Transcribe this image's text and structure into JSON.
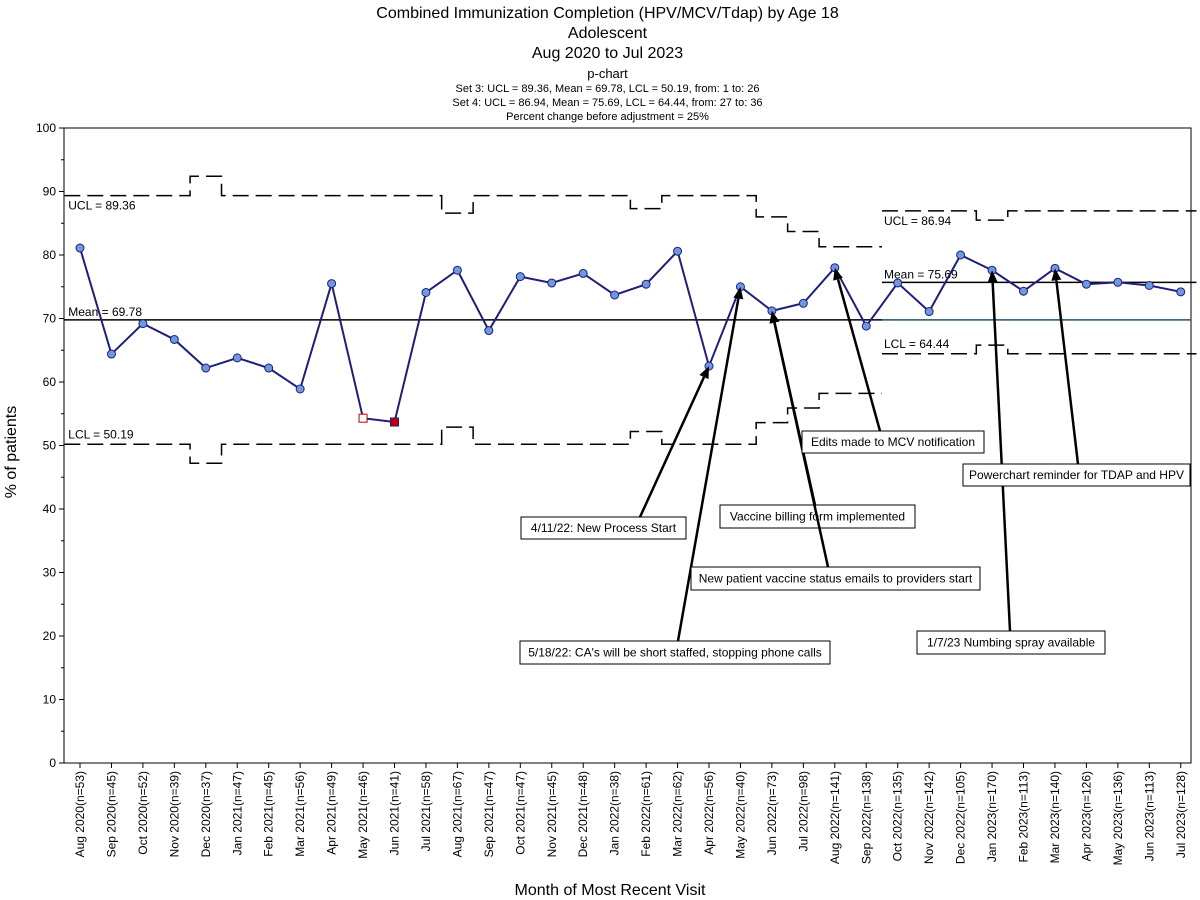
{
  "chart_data": {
    "type": "line",
    "chart_kind": "p-chart",
    "title": "Combined Immunization Completion (HPV/MCV/Tdap) by Age 18",
    "subtitle": "Adolescent",
    "date_range": "Aug 2020 to Jul 2023",
    "chart_type_label": "p-chart",
    "set_info": [
      "Set 3: UCL = 89.36, Mean = 69.78, LCL = 50.19, from: 1 to: 26",
      "Set 4: UCL = 86.94, Mean = 75.69, LCL = 64.44, from: 27 to: 36",
      "Percent change before adjustment = 25%"
    ],
    "xlabel": "Month of Most Recent Visit",
    "ylabel": "% of patients",
    "ylim": [
      0,
      100
    ],
    "yticks": [
      0,
      10,
      20,
      30,
      40,
      50,
      60,
      70,
      80,
      90,
      100
    ],
    "categories": [
      "Aug 2020(n=53)",
      "Sep 2020(n=45)",
      "Oct 2020(n=52)",
      "Nov 2020(n=39)",
      "Dec 2020(n=37)",
      "Jan 2021(n=47)",
      "Feb 2021(n=45)",
      "Mar 2021(n=56)",
      "Apr 2021(n=49)",
      "May 2021(n=46)",
      "Jun 2021(n=41)",
      "Jul 2021(n=58)",
      "Aug 2021(n=67)",
      "Sep 2021(n=47)",
      "Oct 2021(n=47)",
      "Nov 2021(n=45)",
      "Dec 2021(n=48)",
      "Jan 2022(n=38)",
      "Feb 2022(n=61)",
      "Mar 2022(n=62)",
      "Apr 2022(n=56)",
      "May 2022(n=40)",
      "Jun 2022(n=73)",
      "Jul 2022(n=98)",
      "Aug 2022(n=141)",
      "Sep 2022(n=138)",
      "Oct 2022(n=135)",
      "Nov 2022(n=142)",
      "Dec 2022(n=105)",
      "Jan 2023(n=170)",
      "Feb 2023(n=113)",
      "Mar 2023(n=140)",
      "Apr 2023(n=126)",
      "May 2023(n=136)",
      "Jun 2023(n=113)",
      "Jul 2023(n=128)"
    ],
    "values": [
      81.1,
      64.4,
      69.2,
      66.7,
      62.2,
      63.8,
      62.2,
      58.9,
      75.5,
      54.3,
      53.7,
      74.1,
      77.6,
      68.1,
      76.6,
      75.6,
      77.1,
      73.7,
      75.4,
      80.6,
      62.5,
      75.0,
      71.2,
      72.4,
      78.0,
      68.8,
      75.6,
      71.1,
      80.0,
      77.6,
      74.3,
      77.9,
      75.4,
      75.7,
      75.2,
      74.2
    ],
    "point_markers": {
      "9": "open-square",
      "10": "filled-red-square"
    },
    "mean_line_color": "#000000",
    "series_color": "#1f1f7a",
    "point_color": "#6f98de",
    "sets": [
      {
        "from": 1,
        "to": 26,
        "mean": 69.78,
        "ucl_label": "UCL = 89.36",
        "mean_label": "Mean = 69.78",
        "lcl_label": "LCL = 50.19",
        "ucl": [
          89.36,
          89.36,
          89.36,
          89.36,
          92.4,
          89.36,
          89.36,
          89.36,
          89.36,
          89.36,
          89.36,
          89.36,
          86.6,
          89.36,
          89.36,
          89.36,
          89.36,
          89.36,
          87.3,
          89.36,
          89.36,
          89.36,
          86.0,
          83.7,
          81.3,
          81.3
        ],
        "lcl": [
          50.19,
          50.19,
          50.19,
          50.19,
          47.2,
          50.19,
          50.19,
          50.19,
          50.19,
          50.19,
          50.19,
          50.19,
          52.9,
          50.19,
          50.19,
          50.19,
          50.19,
          50.19,
          52.2,
          50.19,
          50.19,
          50.19,
          53.6,
          55.9,
          58.2,
          58.2
        ]
      },
      {
        "from": 27,
        "to": 36,
        "mean": 75.69,
        "ucl_label": "UCL = 86.94",
        "mean_label": "Mean = 75.69",
        "lcl_label": "LCL = 64.44",
        "ucl": [
          86.94,
          86.94,
          86.94,
          85.5,
          86.94,
          86.94,
          86.94,
          86.94,
          86.94,
          86.94
        ],
        "lcl": [
          64.44,
          64.44,
          64.44,
          65.8,
          64.44,
          64.44,
          64.44,
          64.44,
          64.44,
          64.44
        ]
      }
    ],
    "annotations": [
      {
        "text": "4/11/22: New Process Start",
        "point_index": 20
      },
      {
        "text": "5/18/22: CA's will be short staffed, stopping phone calls",
        "point_index": 21
      },
      {
        "text": "Vaccine billing form implemented",
        "point_index": 22
      },
      {
        "text": "New patient vaccine status emails to providers start",
        "point_index": 22
      },
      {
        "text": "Edits made to MCV notification",
        "point_index": 24
      },
      {
        "text": "1/7/23 Numbing spray available",
        "point_index": 29
      },
      {
        "text": "Powerchart reminder for TDAP and HPV",
        "point_index": 31
      }
    ]
  }
}
